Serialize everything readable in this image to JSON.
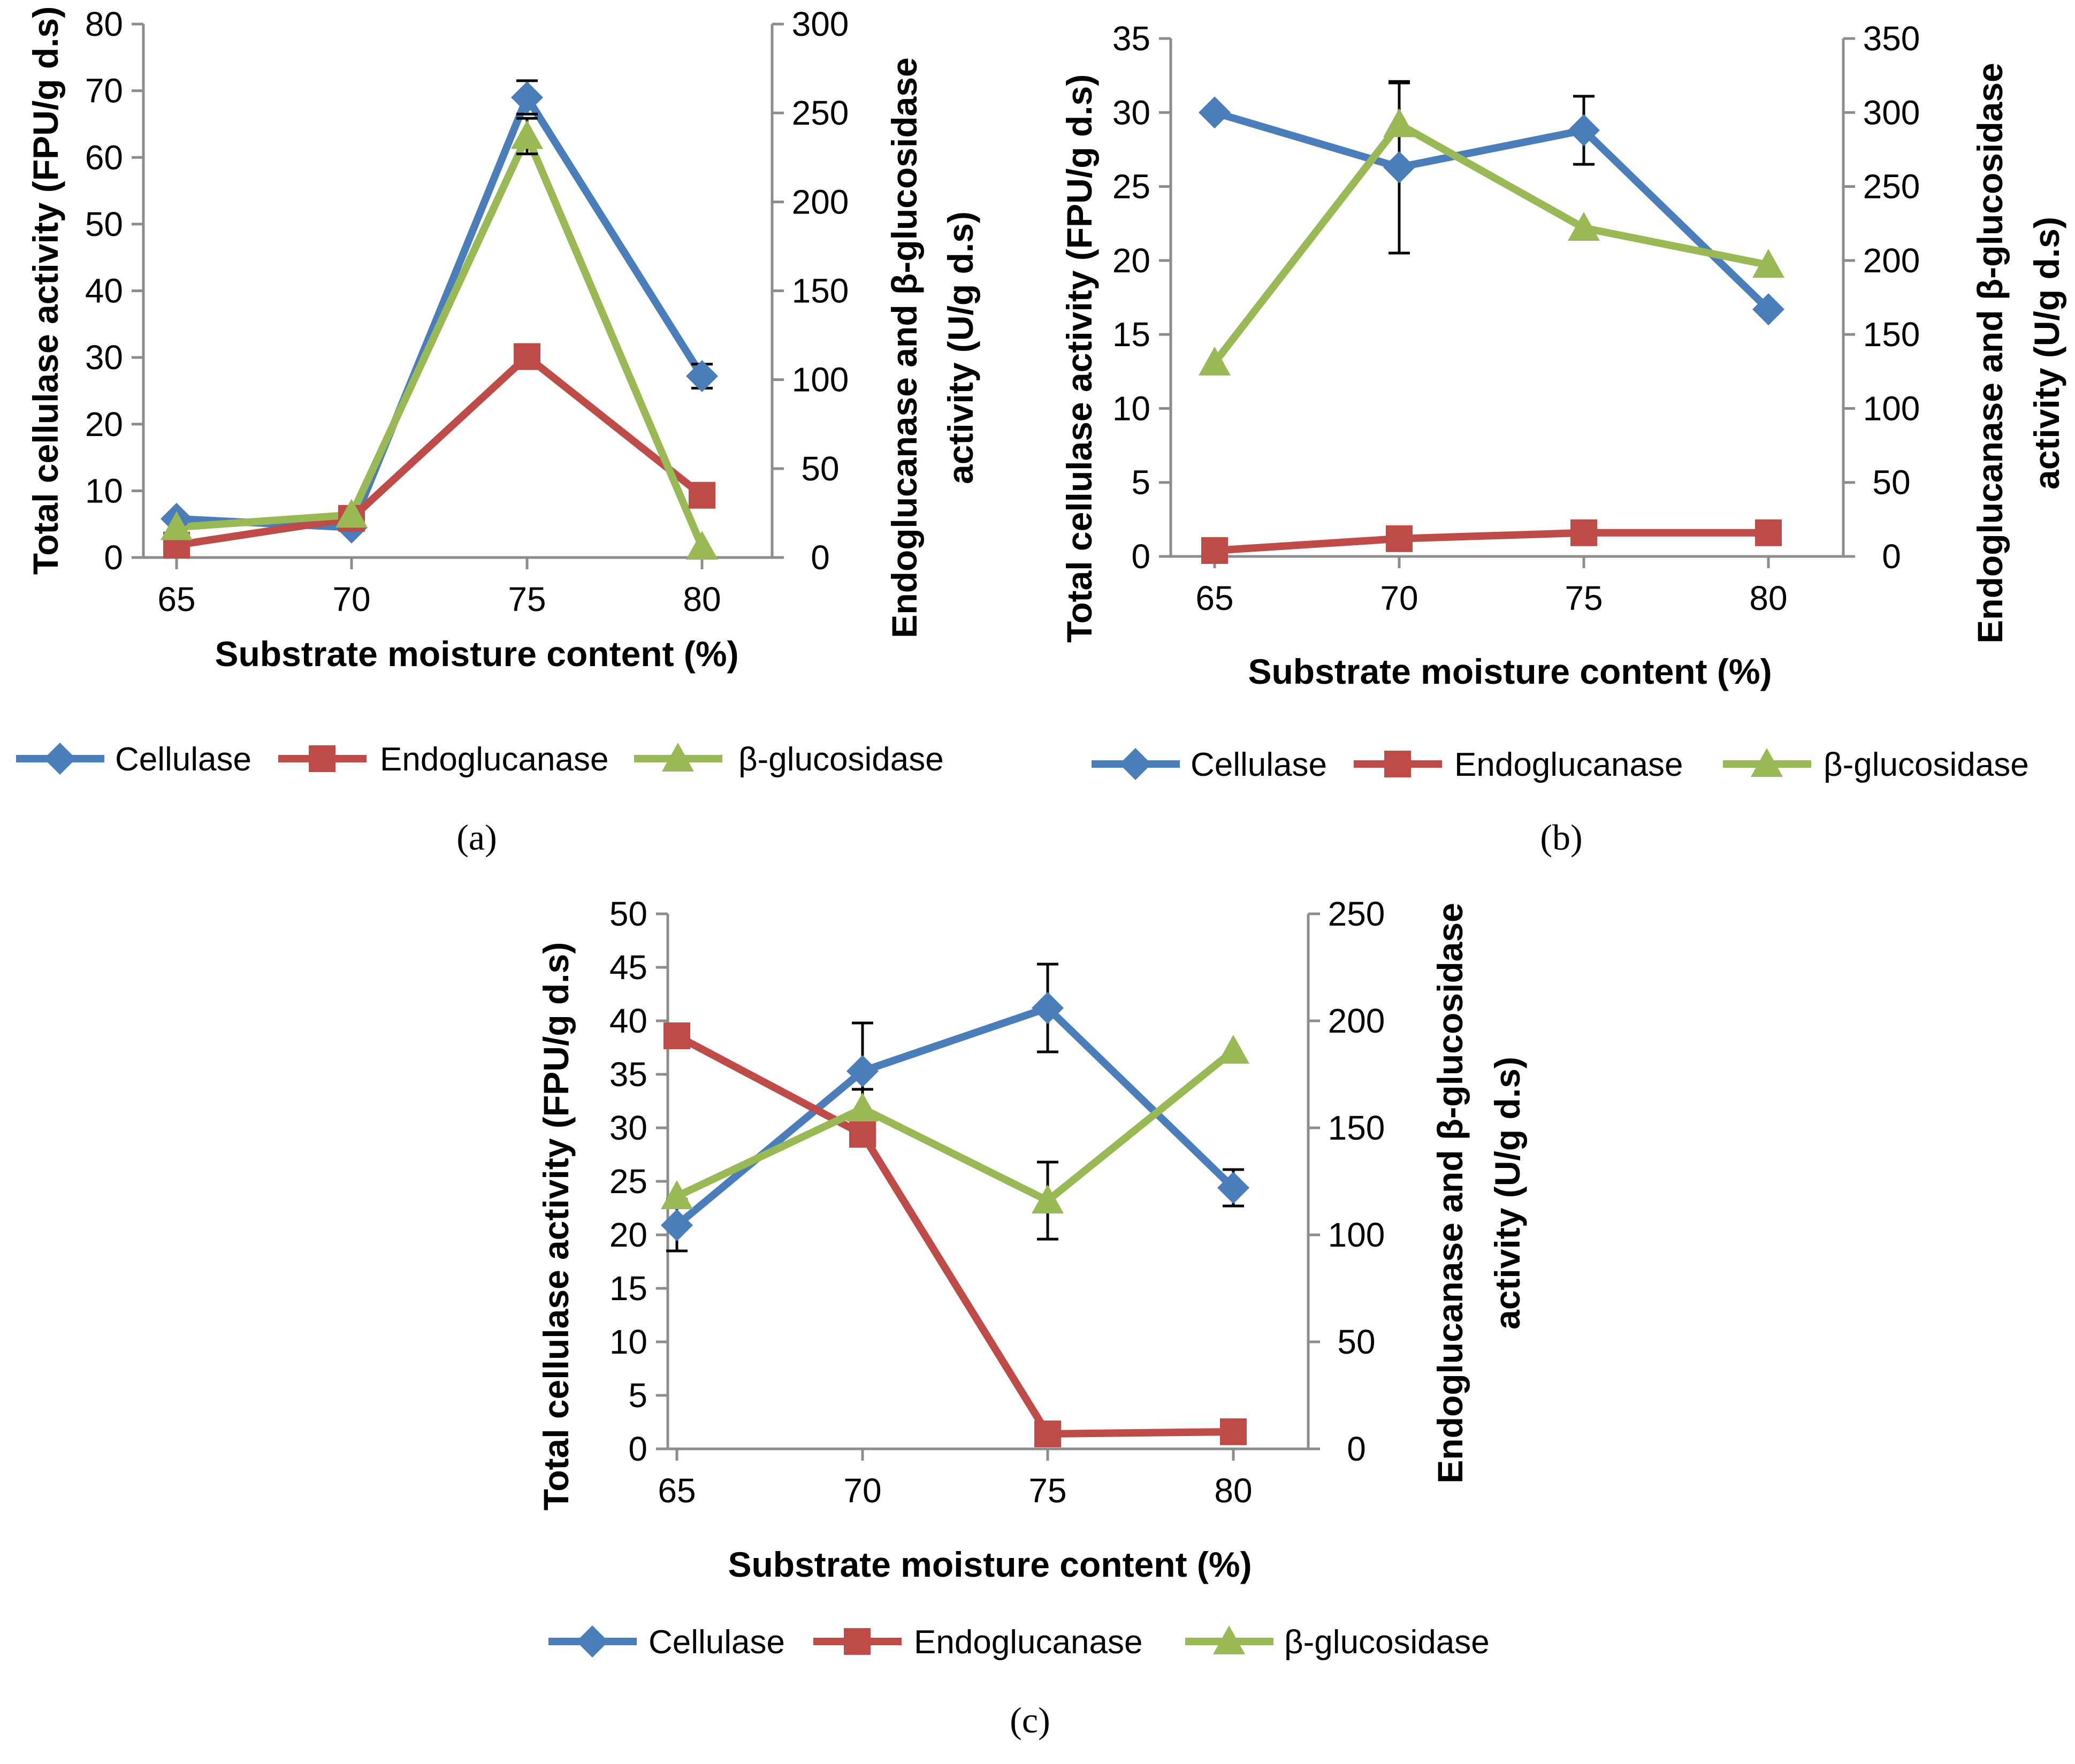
{
  "colors": {
    "cellulase": "#4a7ebb",
    "endoglucanase": "#be4b48",
    "glucosidase": "#98b954",
    "axis": "#8c8c8c",
    "error": "#000000"
  },
  "legend_labels": [
    "Cellulase",
    "Endoglucanase",
    "β-glucosidase"
  ],
  "chart_data": [
    {
      "type": "line",
      "panel": "(a)",
      "xlabel": "Substrate moisture content (%)",
      "ylabel": "Total cellulase activity (FPU/g d.s)",
      "y2label_line1": "Endoglucanase and β-glucosidase",
      "y2label_line2": "activity (U/g d.s)",
      "categories": [
        "65",
        "70",
        "75",
        "80"
      ],
      "ylim": [
        0,
        80
      ],
      "yticks": [
        0,
        10,
        20,
        30,
        40,
        50,
        60,
        70,
        80
      ],
      "y2lim": [
        0,
        300
      ],
      "y2ticks": [
        0,
        50,
        100,
        150,
        200,
        250,
        300
      ],
      "series": [
        {
          "name": "Cellulase",
          "axis": "left",
          "marker": "diamond",
          "values": [
            5.8,
            4.5,
            69,
            27.2
          ],
          "errors": [
            0.6,
            0.5,
            2.5,
            1.8
          ]
        },
        {
          "name": "Endoglucanase",
          "axis": "right",
          "marker": "square",
          "values": [
            7,
            22,
            113,
            35
          ],
          "errors": [
            0,
            0,
            0,
            0
          ]
        },
        {
          "name": "β-glucosidase",
          "axis": "right",
          "marker": "triangle",
          "values": [
            17,
            24,
            237,
            6
          ],
          "errors": [
            0,
            0,
            10,
            0
          ]
        }
      ]
    },
    {
      "type": "line",
      "panel": "(b)",
      "xlabel": "Substrate moisture content (%)",
      "ylabel": "Total cellulase activity (FPU/g d.s)",
      "y2label_line1": "Endoglucanase and β-glucosidase",
      "y2label_line2": "activity (U/g d.s)",
      "categories": [
        "65",
        "70",
        "75",
        "80"
      ],
      "ylim": [
        0,
        35
      ],
      "yticks": [
        0,
        5,
        10,
        15,
        20,
        25,
        30,
        35
      ],
      "y2lim": [
        0,
        350
      ],
      "y2ticks": [
        0,
        50,
        100,
        150,
        200,
        250,
        300,
        350
      ],
      "series": [
        {
          "name": "Cellulase",
          "axis": "left",
          "marker": "diamond",
          "values": [
            30,
            26.3,
            28.8,
            16.7
          ],
          "errors": [
            0,
            5.8,
            2.3,
            0
          ]
        },
        {
          "name": "Endoglucanase",
          "axis": "right",
          "marker": "square",
          "values": [
            4,
            12,
            16,
            16
          ],
          "errors": [
            0,
            0,
            0,
            0
          ]
        },
        {
          "name": "β-glucosidase",
          "axis": "right",
          "marker": "triangle",
          "values": [
            131,
            292,
            222,
            197
          ],
          "errors": [
            0,
            28,
            0,
            0
          ]
        }
      ]
    },
    {
      "type": "line",
      "panel": "(c)",
      "xlabel": "Substrate moisture content (%)",
      "ylabel": "Total cellulase activity (FPU/g d.s)",
      "y2label_line1": "Endoglucanase and β-glucosidase",
      "y2label_line2": "activity (U/g d.s)",
      "categories": [
        "65",
        "70",
        "75",
        "80"
      ],
      "ylim": [
        0,
        50
      ],
      "yticks": [
        0,
        5,
        10,
        15,
        20,
        25,
        30,
        35,
        40,
        45,
        50
      ],
      "y2lim": [
        0,
        250
      ],
      "y2ticks": [
        0,
        50,
        100,
        150,
        200,
        250
      ],
      "series": [
        {
          "name": "Cellulase",
          "axis": "left",
          "marker": "diamond",
          "values": [
            20.9,
            35.3,
            41.2,
            24.4
          ],
          "errors": [
            2.4,
            4.5,
            4.1,
            1.7
          ]
        },
        {
          "name": "Endoglucanase",
          "axis": "right",
          "marker": "square",
          "values": [
            193,
            147,
            7,
            8
          ],
          "errors": [
            0,
            0,
            0,
            0
          ]
        },
        {
          "name": "β-glucosidase",
          "axis": "right",
          "marker": "triangle",
          "values": [
            118,
            159,
            116,
            186
          ],
          "errors": [
            0,
            9,
            18,
            0
          ]
        }
      ]
    }
  ]
}
